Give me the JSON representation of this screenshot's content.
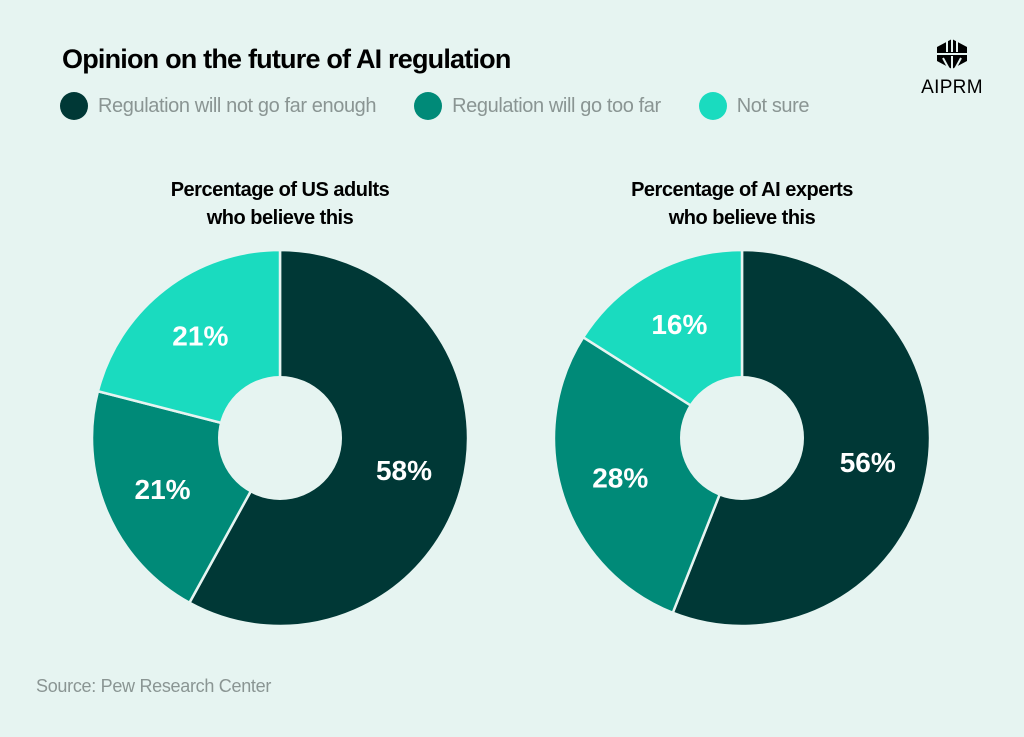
{
  "title": "Opinion on the future of AI regulation",
  "logo": "AIPRM",
  "source": "Source: Pew Research Center",
  "legend": [
    {
      "label": "Regulation will not go far enough",
      "color": "#003836"
    },
    {
      "label": "Regulation will go too far",
      "color": "#008a78"
    },
    {
      "label": "Not sure",
      "color": "#1adbbf"
    }
  ],
  "chart_data": [
    {
      "type": "pie",
      "title": "Percentage of US adults who believe this",
      "title_lines": [
        "Percentage of US adults",
        "who believe this"
      ],
      "categories": [
        "Regulation will not go far enough",
        "Regulation will go too far",
        "Not sure"
      ],
      "values": [
        58,
        21,
        21
      ],
      "labels": [
        "58%",
        "21%",
        "21%"
      ],
      "donut": true
    },
    {
      "type": "pie",
      "title": "Percentage of AI experts who believe this",
      "title_lines": [
        "Percentage of AI experts",
        "who believe this"
      ],
      "categories": [
        "Regulation will not go far enough",
        "Regulation will go too far",
        "Not sure"
      ],
      "values": [
        56,
        28,
        16
      ],
      "labels": [
        "56%",
        "28%",
        "16%"
      ],
      "donut": true
    }
  ]
}
